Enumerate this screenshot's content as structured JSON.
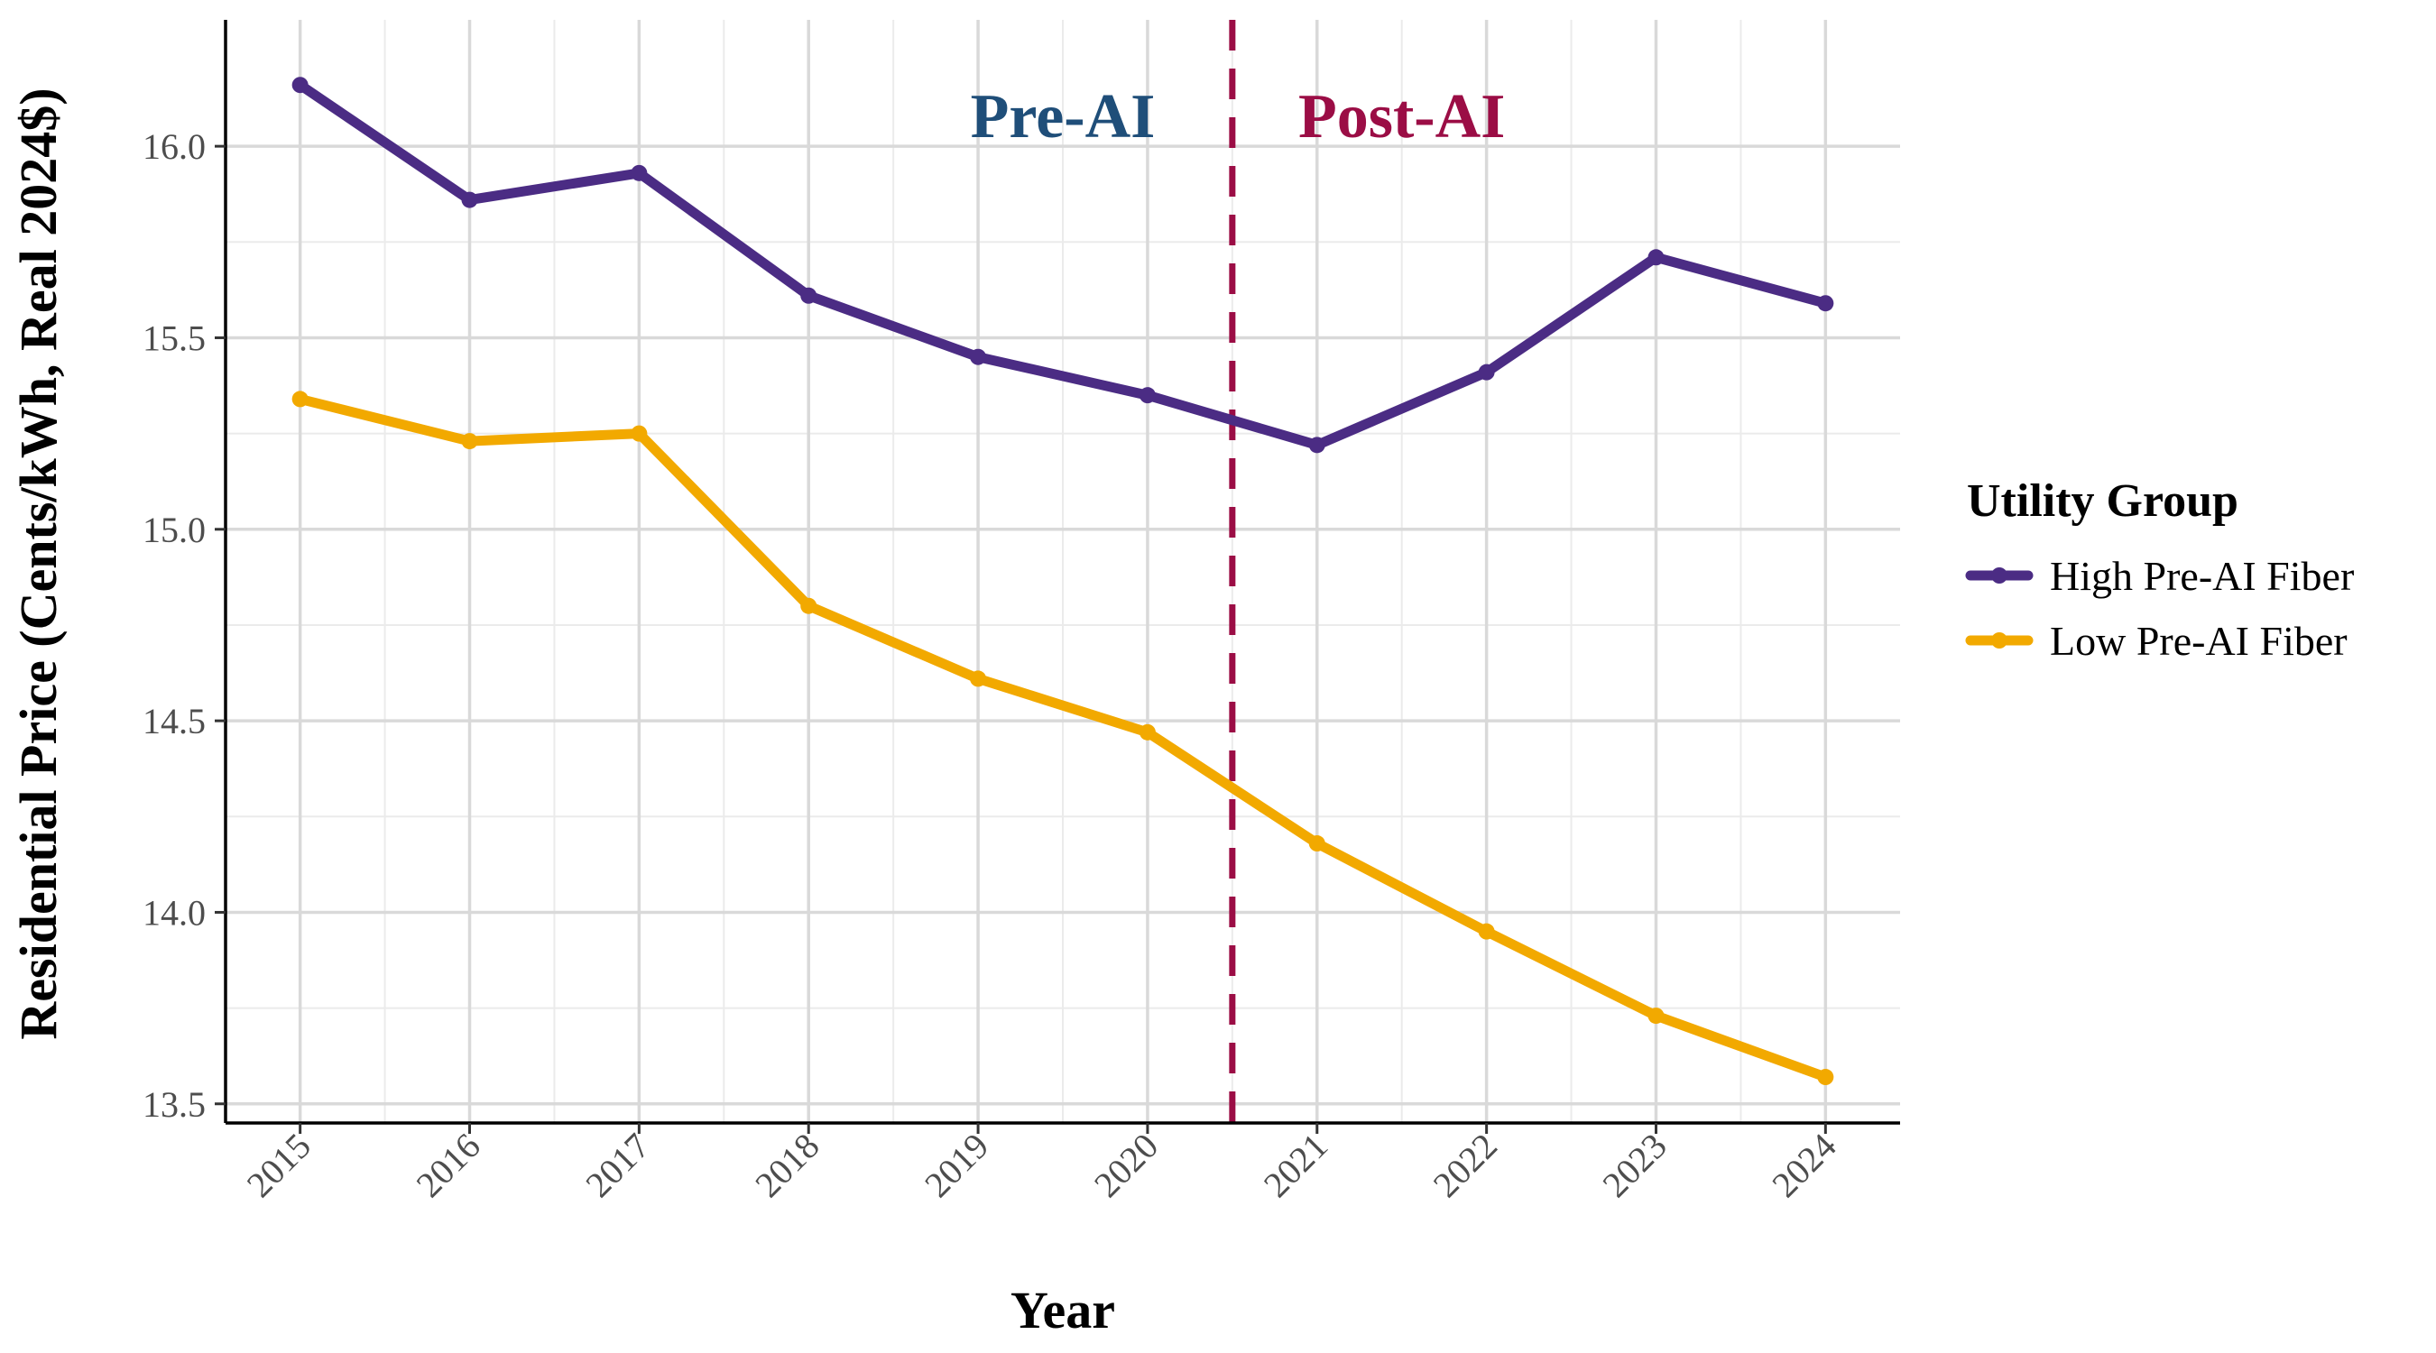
{
  "chart_data": {
    "type": "line",
    "title": "",
    "xlabel": "Year",
    "ylabel": "Residential Price (Cents/kWh, Real 2024$)",
    "x": [
      2015,
      2016,
      2017,
      2018,
      2019,
      2020,
      2021,
      2022,
      2023,
      2024
    ],
    "xlim": [
      2014.56,
      2024.44
    ],
    "ylim": [
      13.45,
      16.33
    ],
    "yticks": [
      13.5,
      14.0,
      14.5,
      15.0,
      15.5,
      16.0
    ],
    "ytick_labels": [
      "13.5",
      "14.0",
      "14.5",
      "15.0",
      "15.5",
      "16.0"
    ],
    "xtick_labels": [
      "2015",
      "2016",
      "2017",
      "2018",
      "2019",
      "2020",
      "2021",
      "2022",
      "2023",
      "2024"
    ],
    "grid": true,
    "legend": {
      "title": "Utility Group",
      "placement": "right"
    },
    "series": [
      {
        "name": "High Pre-AI Fiber",
        "color": "#4b2c84",
        "values": [
          16.16,
          15.86,
          15.93,
          15.61,
          15.45,
          15.35,
          15.22,
          15.41,
          15.71,
          15.59
        ]
      },
      {
        "name": "Low Pre-AI Fiber",
        "color": "#f2a900",
        "values": [
          15.34,
          15.23,
          15.25,
          14.8,
          14.61,
          14.47,
          14.18,
          13.95,
          13.73,
          13.57
        ]
      }
    ],
    "reference_line": {
      "x": 2020.5,
      "color": "#9b0d45",
      "style": "dashed"
    },
    "annotations": [
      {
        "text": "Pre-AI",
        "x": 2019.5,
        "y": 16.08,
        "color": "#1f4e79"
      },
      {
        "text": "Post-AI",
        "x": 2021.5,
        "y": 16.08,
        "color": "#9b0d45"
      }
    ]
  }
}
